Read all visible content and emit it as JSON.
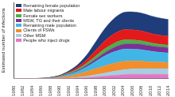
{
  "chart_data": {
    "type": "area",
    "stacked": true,
    "grid": false,
    "legend": "top-left",
    "tick_labels": "x",
    "y_label": "Estimated number of infections",
    "x": [
      1980,
      1982,
      1984,
      1986,
      1988,
      1990,
      1992,
      1994,
      1996,
      1998,
      2000,
      2002,
      2004,
      2006,
      2008,
      2010,
      2012,
      2014
    ],
    "xlim": [
      1980,
      2014
    ],
    "xticks": [
      1980,
      1982,
      1984,
      1986,
      1988,
      1990,
      1992,
      1994,
      1996,
      1998,
      2000,
      2002,
      2004,
      2006,
      2008,
      2010,
      2012,
      2014
    ],
    "ylim": [
      0,
      100
    ],
    "series": [
      {
        "name": "Remaining female population",
        "color": "#1f3d7a",
        "values": [
          0,
          0,
          0,
          0,
          0.2,
          0.6,
          1.5,
          3,
          6,
          11,
          16,
          20,
          22.5,
          23.5,
          23.5,
          23,
          22.5,
          22
        ]
      },
      {
        "name": "Male labour migrants",
        "color": "#e31a1c",
        "values": [
          0,
          0,
          0,
          0,
          0.1,
          0.4,
          1,
          2.5,
          4.5,
          7.5,
          10.5,
          12.5,
          13.5,
          13.5,
          13,
          12.5,
          12,
          11.5
        ]
      },
      {
        "name": "Female sex workers",
        "color": "#4daf4a",
        "values": [
          0,
          0,
          0,
          0.1,
          0.3,
          0.6,
          1.2,
          2,
          3,
          4,
          5,
          5.5,
          5.5,
          5,
          4.5,
          4,
          3.5,
          3.5
        ]
      },
      {
        "name": "MSW, TG and their clients",
        "color": "#7b3294",
        "values": [
          0,
          0,
          0,
          0,
          0.1,
          0.3,
          0.6,
          1.2,
          2,
          3,
          4.2,
          5.5,
          6.5,
          7,
          7,
          7,
          7,
          7
        ]
      },
      {
        "name": "Remaining male population",
        "color": "#41b6e6",
        "values": [
          0,
          0,
          0,
          0.1,
          0.3,
          0.8,
          2,
          3.5,
          6,
          9.5,
          13,
          15,
          16,
          15.5,
          15,
          14,
          13,
          12.5
        ]
      },
      {
        "name": "Clients of FSWs",
        "color": "#f28e2b",
        "values": [
          0,
          0,
          0,
          0.2,
          0.5,
          1.2,
          2.5,
          4,
          6,
          8,
          9.5,
          10.5,
          11,
          10.5,
          10,
          9,
          8.5,
          8
        ]
      },
      {
        "name": "Other MSM",
        "color": "#a6cee3",
        "values": [
          0,
          0,
          0,
          0,
          0.1,
          0.2,
          0.5,
          1,
          1.8,
          2.8,
          4,
          5.2,
          6.3,
          7,
          7.5,
          7.5,
          7.5,
          7.5
        ]
      },
      {
        "name": "People who inject drugs",
        "color": "#e377c2",
        "values": [
          0,
          0,
          0,
          0,
          0,
          0.1,
          0.3,
          0.7,
          1.3,
          2.2,
          3.2,
          4.3,
          5.2,
          5.5,
          5.5,
          5.5,
          5.5,
          5.5
        ]
      }
    ]
  }
}
